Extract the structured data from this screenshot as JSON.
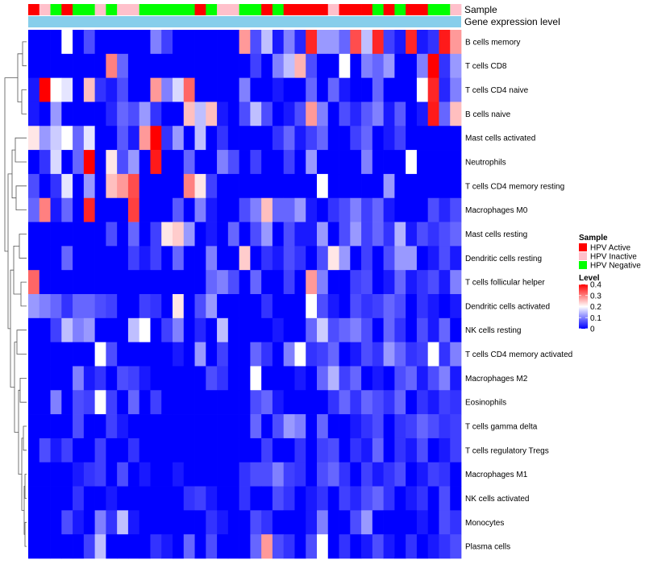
{
  "chart_data": {
    "type": "heatmap",
    "title": "",
    "annotation_tracks": [
      {
        "name": "Sample",
        "values": [
          "A",
          "I",
          "N",
          "A",
          "N",
          "N",
          "I",
          "N",
          "I",
          "I",
          "N",
          "N",
          "N",
          "N",
          "N",
          "A",
          "N",
          "I",
          "I",
          "N",
          "N",
          "A",
          "N",
          "A",
          "A",
          "A",
          "A",
          "I",
          "A",
          "A",
          "A",
          "N",
          "A",
          "N",
          "A",
          "A",
          "N",
          "N",
          "I"
        ]
      },
      {
        "name": "Gene expression level",
        "color": "#87CEEB"
      }
    ],
    "row_labels": [
      "B cells memory",
      "T cells CD8",
      "T cells CD4 naive",
      "B cells naive",
      "Mast cells activated",
      "Neutrophils",
      "T cells CD4 memory resting",
      "Macrophages M0",
      "Mast cells resting",
      "Dendritic cells resting",
      "T cells follicular helper",
      "Dendritic cells activated",
      "NK cells resting",
      "T cells CD4 memory activated",
      "Macrophages M2",
      "Eosinophils",
      "T cells gamma delta",
      "T cells regulatory  Tregs",
      "Macrophages M1",
      "NK cells activated",
      "Monocytes",
      "Plasma cells"
    ],
    "n_columns": 39,
    "values": [
      [
        0,
        0,
        0,
        0.2,
        0,
        0.06,
        0,
        0,
        0,
        0,
        0,
        0.1,
        0.05,
        0,
        0,
        0,
        0,
        0,
        0,
        0.28,
        0.06,
        0.15,
        0.02,
        0.1,
        0.03,
        0.37,
        0.12,
        0.12,
        0.08,
        0.34,
        0.15,
        0.37,
        0.05,
        0.02,
        0.37,
        0.02,
        0.04,
        0.38,
        0.28
      ],
      [
        0,
        0,
        0,
        0,
        0,
        0,
        0,
        0.3,
        0.08,
        0,
        0,
        0,
        0,
        0,
        0,
        0,
        0,
        0,
        0,
        0,
        0.05,
        0,
        0.1,
        0.15,
        0.26,
        0.06,
        0,
        0,
        0.2,
        0,
        0.1,
        0.08,
        0.12,
        0,
        0,
        0.1,
        0.4,
        0.04,
        0.12
      ],
      [
        0.02,
        0.4,
        0.2,
        0.18,
        0,
        0.25,
        0.04,
        0.02,
        0.06,
        0,
        0,
        0.28,
        0.1,
        0.17,
        0.32,
        0,
        0,
        0,
        0,
        0.1,
        0,
        0,
        0.02,
        0,
        0,
        0.08,
        0,
        0.08,
        0.02,
        0,
        0,
        0.08,
        0,
        0,
        0,
        0.2,
        0.37,
        0.03,
        0.1
      ],
      [
        0.02,
        0,
        0.12,
        0,
        0,
        0,
        0,
        0.03,
        0.08,
        0.06,
        0.12,
        0.04,
        0,
        0,
        0.25,
        0.15,
        0.25,
        0.02,
        0,
        0.06,
        0.15,
        0.06,
        0,
        0.02,
        0.06,
        0.28,
        0.1,
        0,
        0.06,
        0.03,
        0.07,
        0.1,
        0.02,
        0.07,
        0,
        0.02,
        0.38,
        0.08,
        0.25
      ],
      [
        0.22,
        0.12,
        0.16,
        0.2,
        0.08,
        0.18,
        0,
        0,
        0.07,
        0.02,
        0.28,
        0.4,
        0.04,
        0.12,
        0,
        0.15,
        0,
        0.04,
        0,
        0,
        0,
        0,
        0.04,
        0.08,
        0.02,
        0.05,
        0.08,
        0,
        0,
        0.05,
        0.08,
        0,
        0.02,
        0.05,
        0,
        0,
        0,
        0,
        0
      ],
      [
        0,
        0.04,
        0.17,
        0,
        0.08,
        0.4,
        0,
        0.22,
        0.06,
        0.12,
        0,
        0.38,
        0,
        0,
        0.08,
        0,
        0,
        0.1,
        0.06,
        0,
        0.05,
        0,
        0,
        0.05,
        0,
        0.12,
        0,
        0,
        0,
        0,
        0.1,
        0,
        0,
        0,
        0.2,
        0,
        0,
        0,
        0
      ],
      [
        0.06,
        0,
        0.04,
        0.18,
        0,
        0.12,
        0,
        0.25,
        0.28,
        0.34,
        0,
        0,
        0,
        0,
        0.3,
        0.22,
        0.05,
        0,
        0,
        0,
        0,
        0,
        0,
        0,
        0,
        0,
        0.2,
        0,
        0,
        0,
        0,
        0,
        0.12,
        0,
        0,
        0,
        0,
        0,
        0
      ],
      [
        0.08,
        0.3,
        0.02,
        0.08,
        0,
        0.37,
        0,
        0,
        0,
        0.35,
        0,
        0,
        0,
        0.07,
        0,
        0.1,
        0.02,
        0,
        0,
        0.06,
        0.1,
        0.25,
        0.08,
        0.08,
        0.12,
        0.02,
        0,
        0.04,
        0.06,
        0.1,
        0.05,
        0.08,
        0.02,
        0,
        0,
        0,
        0.06,
        0.03,
        0.06
      ],
      [
        0,
        0,
        0,
        0,
        0,
        0,
        0,
        0.06,
        0,
        0.08,
        0,
        0.05,
        0.22,
        0.24,
        0.12,
        0,
        0.02,
        0,
        0.08,
        0,
        0.06,
        0.12,
        0,
        0.06,
        0.02,
        0.02,
        0.12,
        0,
        0.06,
        0.12,
        0.05,
        0.08,
        0.04,
        0.14,
        0.02,
        0.06,
        0.04,
        0.06,
        0.08
      ],
      [
        0,
        0,
        0,
        0.08,
        0,
        0,
        0,
        0,
        0,
        0.05,
        0.02,
        0.05,
        0,
        0.08,
        0,
        0,
        0.1,
        0,
        0,
        0.24,
        0,
        0.04,
        0.02,
        0.06,
        0.04,
        0,
        0.06,
        0.22,
        0.12,
        0,
        0.05,
        0,
        0.06,
        0.12,
        0.12,
        0,
        0.02,
        0.06,
        0.02
      ],
      [
        0.32,
        0,
        0,
        0,
        0,
        0,
        0,
        0,
        0,
        0,
        0,
        0,
        0,
        0,
        0,
        0,
        0.08,
        0.1,
        0.06,
        0,
        0.08,
        0,
        0,
        0.05,
        0,
        0.28,
        0.1,
        0,
        0,
        0.05,
        0.06,
        0,
        0.02,
        0.08,
        0.02,
        0.04,
        0.06,
        0.02,
        0.1
      ],
      [
        0.12,
        0.1,
        0.08,
        0.04,
        0.08,
        0.08,
        0.06,
        0.05,
        0,
        0,
        0.05,
        0.04,
        0,
        0.22,
        0,
        0.06,
        0.12,
        0,
        0,
        0,
        0,
        0.04,
        0,
        0,
        0,
        0.2,
        0.06,
        0.02,
        0,
        0.06,
        0.04,
        0.05,
        0.08,
        0.06,
        0,
        0.04,
        0.02,
        0,
        0.02
      ],
      [
        0,
        0,
        0.05,
        0.15,
        0.1,
        0.12,
        0,
        0,
        0,
        0.15,
        0.2,
        0,
        0.05,
        0.1,
        0,
        0.03,
        0,
        0.15,
        0,
        0,
        0,
        0,
        0.02,
        0,
        0,
        0.08,
        0.16,
        0.06,
        0.08,
        0.1,
        0.06,
        0,
        0.08,
        0.04,
        0,
        0.06,
        0.02,
        0.08,
        0
      ],
      [
        0,
        0,
        0,
        0,
        0,
        0,
        0.2,
        0.06,
        0,
        0,
        0,
        0,
        0,
        0.02,
        0,
        0.12,
        0,
        0.05,
        0,
        0,
        0.08,
        0.04,
        0,
        0.1,
        0.2,
        0.04,
        0.05,
        0.08,
        0,
        0.02,
        0.06,
        0.04,
        0.12,
        0.08,
        0.04,
        0.05,
        0.2,
        0.04,
        0.1
      ],
      [
        0,
        0,
        0,
        0,
        0.1,
        0.02,
        0.04,
        0,
        0.06,
        0.05,
        0.02,
        0,
        0,
        0,
        0,
        0,
        0.06,
        0.04,
        0,
        0,
        0.2,
        0,
        0,
        0,
        0.02,
        0,
        0.08,
        0.14,
        0.05,
        0.08,
        0,
        0.02,
        0,
        0.06,
        0.08,
        0.02,
        0.06,
        0.1,
        0.02
      ],
      [
        0,
        0,
        0.1,
        0,
        0.06,
        0.05,
        0.2,
        0.05,
        0,
        0.08,
        0,
        0.05,
        0,
        0,
        0,
        0,
        0,
        0,
        0,
        0,
        0.06,
        0.08,
        0.02,
        0,
        0,
        0,
        0,
        0.04,
        0.08,
        0.04,
        0.08,
        0.06,
        0.04,
        0.08,
        0,
        0.04,
        0.02,
        0.05,
        0.04
      ],
      [
        0,
        0,
        0,
        0,
        0.06,
        0,
        0,
        0.05,
        0.02,
        0,
        0,
        0,
        0,
        0,
        0,
        0,
        0,
        0,
        0,
        0,
        0.08,
        0,
        0.06,
        0.12,
        0.1,
        0,
        0.08,
        0,
        0,
        0.02,
        0.04,
        0.06,
        0,
        0.04,
        0.05,
        0.08,
        0.06,
        0.04,
        0.05
      ],
      [
        0,
        0.06,
        0.02,
        0.05,
        0,
        0,
        0.05,
        0,
        0,
        0.04,
        0,
        0,
        0,
        0,
        0,
        0,
        0,
        0,
        0,
        0,
        0,
        0.05,
        0,
        0,
        0.04,
        0,
        0.05,
        0.06,
        0,
        0.04,
        0.02,
        0.08,
        0,
        0.04,
        0.02,
        0.06,
        0,
        0.02,
        0.05
      ],
      [
        0,
        0,
        0,
        0,
        0.02,
        0.04,
        0.05,
        0,
        0.06,
        0,
        0.02,
        0,
        0,
        0.02,
        0,
        0,
        0,
        0,
        0,
        0.04,
        0.06,
        0.06,
        0.1,
        0.05,
        0.04,
        0,
        0.06,
        0.08,
        0.04,
        0,
        0.05,
        0.02,
        0.04,
        0.06,
        0,
        0.02,
        0.05,
        0.04,
        0
      ],
      [
        0,
        0,
        0,
        0,
        0.04,
        0,
        0,
        0.02,
        0,
        0,
        0,
        0,
        0,
        0,
        0.04,
        0.05,
        0.02,
        0,
        0,
        0.04,
        0,
        0,
        0.06,
        0.04,
        0,
        0.02,
        0.04,
        0,
        0.05,
        0.03,
        0.06,
        0.08,
        0.04,
        0,
        0.02,
        0.04,
        0,
        0.06,
        0
      ],
      [
        0,
        0,
        0,
        0.06,
        0.02,
        0,
        0.1,
        0.04,
        0.15,
        0.02,
        0,
        0,
        0,
        0,
        0,
        0,
        0.04,
        0.02,
        0,
        0,
        0.06,
        0.04,
        0,
        0,
        0,
        0.02,
        0.1,
        0,
        0,
        0.06,
        0.12,
        0,
        0,
        0,
        0,
        0.02,
        0,
        0.06,
        0.04
      ],
      [
        0,
        0,
        0,
        0,
        0,
        0.05,
        0.15,
        0,
        0,
        0,
        0,
        0.04,
        0.02,
        0,
        0.08,
        0,
        0.06,
        0,
        0,
        0,
        0.08,
        0.28,
        0.06,
        0.04,
        0,
        0.06,
        0.2,
        0,
        0.04,
        0,
        0.02,
        0.06,
        0.02,
        0,
        0.04,
        0,
        0.02,
        0.04,
        0.06
      ]
    ],
    "legend": {
      "sample": {
        "title": "Sample",
        "entries": [
          {
            "code": "A",
            "label": "HPV Active",
            "color": "#FF0000"
          },
          {
            "code": "I",
            "label": "HPV Inactive",
            "color": "#FFC0CB"
          },
          {
            "code": "N",
            "label": "HPV Negative",
            "color": "#00FF00"
          }
        ]
      },
      "level": {
        "title": "Level",
        "ticks": [
          "0.4",
          "0.3",
          "0.2",
          "0.1",
          "0"
        ],
        "min": 0,
        "max": 0.4,
        "colors": {
          "low": "#0000FF",
          "mid": "#FFFFFF",
          "high": "#FF0000"
        }
      }
    },
    "dendrogram": "rows"
  }
}
